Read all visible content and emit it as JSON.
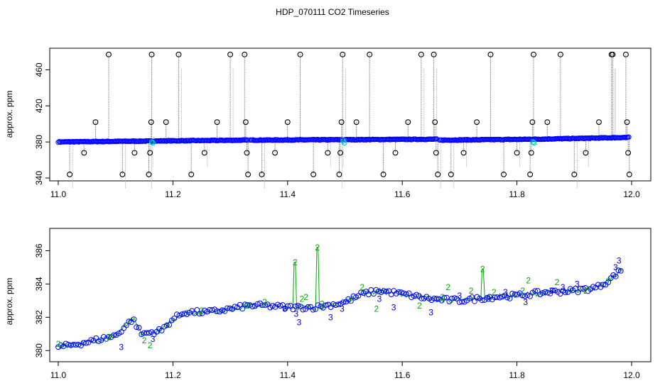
{
  "figure_title": "HDP_070111  CO2 Timeseries",
  "chart_data": [
    {
      "type": "scatter",
      "title": "HDP_070111  CO2 Timeseries",
      "xlabel": "",
      "ylabel": "approx. ppm",
      "xlim": [
        11.0,
        12.0
      ],
      "ylim": [
        340,
        480
      ],
      "x_ticks": [
        "11.0",
        "11.2",
        "11.4",
        "11.6",
        "11.8",
        "12.0"
      ],
      "x_tick_values": [
        11.0,
        11.2,
        11.4,
        11.6,
        11.8,
        12.0
      ],
      "y_ticks": [
        "340",
        "380",
        "420",
        "460"
      ],
      "y_tick_values": [
        340,
        380,
        420,
        460
      ],
      "colors": {
        "baseline": "#0000ff",
        "spike": "#000000",
        "calibration": "#00cccc",
        "vertical_line": "#808080"
      },
      "baseline_segments": [
        {
          "x": [
            11.0,
            11.16
          ],
          "y": [
            380,
            381
          ]
        },
        {
          "x": [
            11.16,
            11.33
          ],
          "y": [
            381,
            382
          ]
        },
        {
          "x": [
            11.335,
            11.495
          ],
          "y": [
            382,
            382.5
          ]
        },
        {
          "x": [
            11.5,
            11.66
          ],
          "y": [
            382.5,
            383
          ]
        },
        {
          "x": [
            11.665,
            11.83
          ],
          "y": [
            382,
            383
          ]
        },
        {
          "x": [
            11.83,
            11.995
          ],
          "y": [
            383,
            385
          ]
        }
      ],
      "spikes": [
        {
          "x": 11.02,
          "y": 344
        },
        {
          "x": 11.045,
          "y": 368
        },
        {
          "x": 11.065,
          "y": 402
        },
        {
          "x": 11.088,
          "y": 477
        },
        {
          "x": 11.112,
          "y": 344
        },
        {
          "x": 11.133,
          "y": 368
        },
        {
          "x": 11.158,
          "y": 344
        },
        {
          "x": 11.16,
          "y": 368
        },
        {
          "x": 11.162,
          "y": 402
        },
        {
          "x": 11.163,
          "y": 477
        },
        {
          "x": 11.188,
          "y": 402
        },
        {
          "x": 11.21,
          "y": 477
        },
        {
          "x": 11.232,
          "y": 344
        },
        {
          "x": 11.255,
          "y": 368
        },
        {
          "x": 11.277,
          "y": 402
        },
        {
          "x": 11.3,
          "y": 477
        },
        {
          "x": 11.325,
          "y": 477
        },
        {
          "x": 11.327,
          "y": 402
        },
        {
          "x": 11.329,
          "y": 368
        },
        {
          "x": 11.331,
          "y": 344
        },
        {
          "x": 11.355,
          "y": 344
        },
        {
          "x": 11.378,
          "y": 368
        },
        {
          "x": 11.4,
          "y": 402
        },
        {
          "x": 11.422,
          "y": 477
        },
        {
          "x": 11.445,
          "y": 344
        },
        {
          "x": 11.47,
          "y": 368
        },
        {
          "x": 11.49,
          "y": 344
        },
        {
          "x": 11.492,
          "y": 368
        },
        {
          "x": 11.494,
          "y": 402
        },
        {
          "x": 11.496,
          "y": 477
        },
        {
          "x": 11.52,
          "y": 402
        },
        {
          "x": 11.543,
          "y": 477
        },
        {
          "x": 11.567,
          "y": 344
        },
        {
          "x": 11.588,
          "y": 368
        },
        {
          "x": 11.61,
          "y": 402
        },
        {
          "x": 11.633,
          "y": 477
        },
        {
          "x": 11.655,
          "y": 477
        },
        {
          "x": 11.657,
          "y": 402
        },
        {
          "x": 11.659,
          "y": 368
        },
        {
          "x": 11.662,
          "y": 344
        },
        {
          "x": 11.685,
          "y": 344
        },
        {
          "x": 11.707,
          "y": 368
        },
        {
          "x": 11.73,
          "y": 402
        },
        {
          "x": 11.754,
          "y": 477
        },
        {
          "x": 11.777,
          "y": 344
        },
        {
          "x": 11.8,
          "y": 368
        },
        {
          "x": 11.823,
          "y": 344
        },
        {
          "x": 11.825,
          "y": 368
        },
        {
          "x": 11.827,
          "y": 402
        },
        {
          "x": 11.829,
          "y": 477
        },
        {
          "x": 11.853,
          "y": 402
        },
        {
          "x": 11.876,
          "y": 477
        },
        {
          "x": 11.9,
          "y": 344
        },
        {
          "x": 11.92,
          "y": 368
        },
        {
          "x": 11.943,
          "y": 402
        },
        {
          "x": 11.965,
          "y": 477
        },
        {
          "x": 11.967,
          "y": 477
        },
        {
          "x": 11.99,
          "y": 477
        },
        {
          "x": 11.992,
          "y": 402
        },
        {
          "x": 11.994,
          "y": 368
        },
        {
          "x": 11.996,
          "y": 344
        }
      ],
      "calibration_points": [
        {
          "x": 11.163,
          "y": 380
        },
        {
          "x": 11.165,
          "y": 379
        },
        {
          "x": 11.497,
          "y": 381
        },
        {
          "x": 11.499,
          "y": 379
        },
        {
          "x": 11.828,
          "y": 380
        },
        {
          "x": 11.83,
          "y": 379
        }
      ]
    },
    {
      "type": "scatter",
      "title": "",
      "xlabel": "",
      "ylabel": "approx. ppm",
      "xlim": [
        11.0,
        12.0
      ],
      "ylim": [
        379.5,
        387
      ],
      "x_ticks": [
        "11.0",
        "11.2",
        "11.4",
        "11.6",
        "11.8",
        "12.0"
      ],
      "x_tick_values": [
        11.0,
        11.2,
        11.4,
        11.6,
        11.8,
        12.0
      ],
      "y_ticks": [
        "380",
        "382",
        "384",
        "386"
      ],
      "y_tick_values": [
        380,
        382,
        384,
        386
      ],
      "colors": {
        "series_2": "#00aa00",
        "series_3": "#0000cc",
        "circles": "#0000ff"
      },
      "trend": [
        {
          "x": 11.0,
          "y": 380.2
        },
        {
          "x": 11.05,
          "y": 380.5
        },
        {
          "x": 11.1,
          "y": 380.9
        },
        {
          "x": 11.13,
          "y": 381.9
        },
        {
          "x": 11.145,
          "y": 381.0
        },
        {
          "x": 11.18,
          "y": 381.2
        },
        {
          "x": 11.2,
          "y": 381.9
        },
        {
          "x": 11.22,
          "y": 382.3
        },
        {
          "x": 11.26,
          "y": 382.3
        },
        {
          "x": 11.3,
          "y": 382.5
        },
        {
          "x": 11.33,
          "y": 382.7
        },
        {
          "x": 11.36,
          "y": 382.7
        },
        {
          "x": 11.4,
          "y": 382.6
        },
        {
          "x": 11.45,
          "y": 382.6
        },
        {
          "x": 11.5,
          "y": 382.9
        },
        {
          "x": 11.53,
          "y": 383.4
        },
        {
          "x": 11.56,
          "y": 383.6
        },
        {
          "x": 11.6,
          "y": 383.4
        },
        {
          "x": 11.65,
          "y": 383.1
        },
        {
          "x": 11.7,
          "y": 383.0
        },
        {
          "x": 11.75,
          "y": 383.2
        },
        {
          "x": 11.8,
          "y": 383.3
        },
        {
          "x": 11.85,
          "y": 383.5
        },
        {
          "x": 11.9,
          "y": 383.6
        },
        {
          "x": 11.94,
          "y": 383.8
        },
        {
          "x": 11.96,
          "y": 384.2
        },
        {
          "x": 11.98,
          "y": 384.8
        }
      ],
      "green_peaks": [
        {
          "x": 11.413,
          "y": 385.3
        },
        {
          "x": 11.452,
          "y": 386.2
        },
        {
          "x": 11.74,
          "y": 384.9
        }
      ],
      "label_2_points": [
        {
          "x": 11.0,
          "y": 380.4
        },
        {
          "x": 11.09,
          "y": 380.8
        },
        {
          "x": 11.15,
          "y": 380.6
        },
        {
          "x": 11.16,
          "y": 380.3
        },
        {
          "x": 11.25,
          "y": 382.4
        },
        {
          "x": 11.33,
          "y": 382.7
        },
        {
          "x": 11.36,
          "y": 382.9
        },
        {
          "x": 11.413,
          "y": 385.3
        },
        {
          "x": 11.425,
          "y": 383.1
        },
        {
          "x": 11.432,
          "y": 383.2
        },
        {
          "x": 11.452,
          "y": 386.2
        },
        {
          "x": 11.46,
          "y": 382.8
        },
        {
          "x": 11.51,
          "y": 383.0
        },
        {
          "x": 11.53,
          "y": 383.8
        },
        {
          "x": 11.555,
          "y": 382.5
        },
        {
          "x": 11.63,
          "y": 382.7
        },
        {
          "x": 11.67,
          "y": 383.2
        },
        {
          "x": 11.68,
          "y": 383.8
        },
        {
          "x": 11.72,
          "y": 383.6
        },
        {
          "x": 11.74,
          "y": 384.9
        },
        {
          "x": 11.76,
          "y": 383.5
        },
        {
          "x": 11.81,
          "y": 383.6
        },
        {
          "x": 11.82,
          "y": 384.2
        },
        {
          "x": 11.87,
          "y": 384.1
        },
        {
          "x": 11.92,
          "y": 383.6
        }
      ],
      "label_3_points": [
        {
          "x": 11.11,
          "y": 380.2
        },
        {
          "x": 11.165,
          "y": 380.7
        },
        {
          "x": 11.395,
          "y": 382.5
        },
        {
          "x": 11.415,
          "y": 382.2
        },
        {
          "x": 11.42,
          "y": 381.7
        },
        {
          "x": 11.475,
          "y": 382.0
        },
        {
          "x": 11.495,
          "y": 382.5
        },
        {
          "x": 11.56,
          "y": 383.1
        },
        {
          "x": 11.585,
          "y": 382.6
        },
        {
          "x": 11.65,
          "y": 382.3
        },
        {
          "x": 11.7,
          "y": 383.3
        },
        {
          "x": 11.75,
          "y": 383.1
        },
        {
          "x": 11.78,
          "y": 383.5
        },
        {
          "x": 11.815,
          "y": 382.9
        },
        {
          "x": 11.86,
          "y": 383.6
        },
        {
          "x": 11.88,
          "y": 383.8
        },
        {
          "x": 11.905,
          "y": 384.0
        },
        {
          "x": 11.978,
          "y": 385.4
        },
        {
          "x": 11.972,
          "y": 385.0
        }
      ]
    }
  ]
}
